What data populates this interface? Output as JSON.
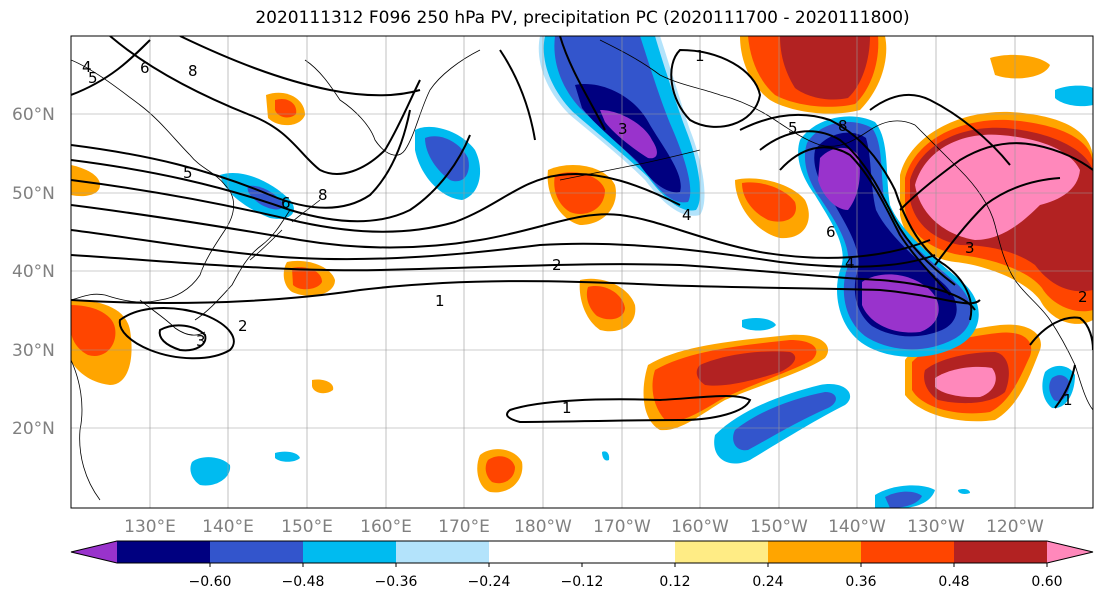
{
  "title": "2020111312 F096 250 hPa PV, precipitation PC (2020111700 - 2020111800)",
  "map": {
    "lat_labels": [
      "60°N",
      "50°N",
      "40°N",
      "30°N",
      "20°N"
    ],
    "lon_labels": [
      "130°E",
      "140°E",
      "150°E",
      "160°E",
      "170°E",
      "180°W",
      "170°W",
      "160°W",
      "150°W",
      "140°W",
      "130°W",
      "120°W"
    ],
    "contour_labels": [
      "1",
      "1",
      "1",
      "1",
      "2",
      "2",
      "2",
      "3",
      "3",
      "3",
      "4",
      "4",
      "4",
      "5",
      "5",
      "5",
      "6",
      "6",
      "6",
      "8",
      "8",
      "8"
    ]
  },
  "colorbar": {
    "colors": [
      "#9933cc",
      "#000080",
      "#3355cc",
      "#00bbf0",
      "#b3e3fb",
      "#ffffff",
      "#ffffff",
      "#ffec85",
      "#ffa500",
      "#ff4500",
      "#b22222",
      "#ff88bb"
    ],
    "tick_labels": [
      "−0.60",
      "−0.48",
      "−0.36",
      "−0.24",
      "−0.12",
      "0.12",
      "0.24",
      "0.36",
      "0.48",
      "0.60"
    ]
  }
}
